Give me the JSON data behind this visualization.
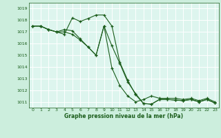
{
  "title": "Graphe pression niveau de la mer (hPa)",
  "bg_color": "#cceedd",
  "plot_bg_color": "#ddf5ee",
  "grid_color": "#ffffff",
  "line_color": "#1a5c1a",
  "ylim": [
    1010.5,
    1019.5
  ],
  "xlim": [
    -0.5,
    23.5
  ],
  "yticks": [
    1011,
    1012,
    1013,
    1014,
    1015,
    1016,
    1017,
    1018,
    1019
  ],
  "xticks": [
    0,
    1,
    2,
    3,
    4,
    5,
    6,
    7,
    8,
    9,
    10,
    11,
    12,
    13,
    14,
    15,
    16,
    17,
    18,
    19,
    20,
    21,
    22,
    23
  ],
  "xtick_labels": [
    "0",
    "1",
    "2",
    "3",
    "4",
    "5",
    "6",
    "7",
    "8",
    "9",
    "10",
    "11",
    "12",
    "13",
    "14",
    "15",
    "16",
    "17",
    "18",
    "19",
    "20",
    "21",
    "22",
    "23"
  ],
  "series": [
    [
      1017.5,
      1017.5,
      1017.2,
      1017.0,
      1017.0,
      1016.8,
      1016.3,
      1015.7,
      1015.0,
      1017.5,
      1015.8,
      1014.3,
      1012.7,
      1011.7,
      1010.85,
      1010.8,
      1011.2,
      1011.2,
      1011.15,
      1011.1,
      1011.2,
      1011.0,
      1011.2,
      1010.9
    ],
    [
      1017.5,
      1017.5,
      1017.2,
      1017.0,
      1016.8,
      1018.2,
      1017.9,
      1018.15,
      1018.45,
      1018.45,
      1017.5,
      1014.4,
      1012.85,
      1011.6,
      1010.85,
      1010.8,
      1011.2,
      1011.2,
      1011.15,
      1011.1,
      1011.2,
      1011.0,
      1011.2,
      1010.9
    ],
    [
      1017.5,
      1017.5,
      1017.2,
      1017.0,
      1017.2,
      1017.1,
      1016.4,
      1015.7,
      1015.0,
      1017.5,
      1013.9,
      1012.4,
      1011.5,
      1011.0,
      1011.2,
      1011.5,
      1011.3,
      1011.3,
      1011.3,
      1011.2,
      1011.3,
      1011.1,
      1011.3,
      1011.0
    ]
  ]
}
